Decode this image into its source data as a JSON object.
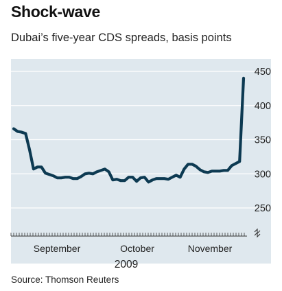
{
  "header": {
    "title": "Shock-wave",
    "subtitle": "Dubai’s five-year CDS spreads, basis points"
  },
  "footer": {
    "source": "Source: Thomson Reuters"
  },
  "colors": {
    "line": "#0d3a52",
    "plot_background": "#dfe8ee",
    "gridline": "#ffffff",
    "text": "#222222"
  },
  "chart_data": {
    "type": "line",
    "title": "Shock-wave",
    "subtitle": "Dubai’s five-year CDS spreads, basis points",
    "xlabel": "2009",
    "ylabel": "",
    "ylim": [
      235,
      460
    ],
    "y_ticks": [
      250,
      300,
      350,
      400,
      450
    ],
    "y_axis_side": "right",
    "y_axis_break": true,
    "grid": "horizontal",
    "x_month_labels": [
      "September",
      "October",
      "November"
    ],
    "x_year_label": "2009",
    "series": [
      {
        "values": [
          366,
          362,
          361,
          359,
          335,
          307,
          310,
          310,
          301,
          299,
          297,
          294,
          294,
          295,
          295,
          293,
          293,
          296,
          300,
          301,
          300,
          303,
          305,
          307,
          303,
          291,
          292,
          290,
          290,
          295,
          295,
          289,
          294,
          295,
          288,
          291,
          293,
          293,
          293,
          292,
          295,
          298,
          295,
          307,
          314,
          314,
          311,
          306,
          303,
          302,
          304,
          304,
          304,
          305,
          305,
          312,
          315,
          318,
          440
        ]
      }
    ]
  }
}
